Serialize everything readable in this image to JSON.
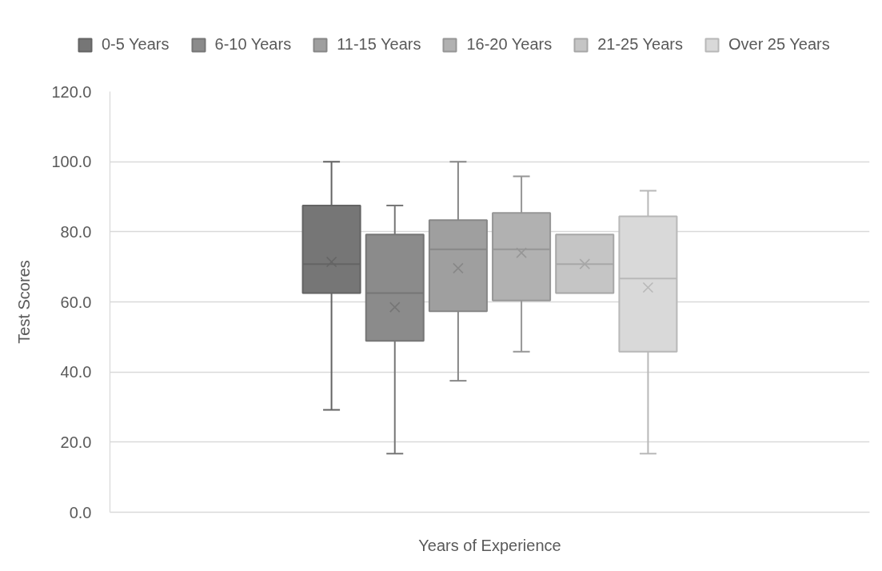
{
  "chart_data": {
    "type": "box",
    "xlabel": "Years of Experience",
    "ylabel": "Test Scores",
    "categories": [
      null
    ],
    "ylim": [
      0,
      120
    ],
    "yticks": [
      {
        "value": 0,
        "label": "0.0"
      },
      {
        "value": 20,
        "label": "20.0"
      },
      {
        "value": 40,
        "label": "40.0"
      },
      {
        "value": 60,
        "label": "60.0"
      },
      {
        "value": 80,
        "label": "80.0"
      },
      {
        "value": 100,
        "label": "100.0"
      },
      {
        "value": 120,
        "label": "120.0"
      }
    ],
    "grid": "y",
    "legend": "top",
    "tick_labels": "y",
    "series": [
      {
        "name": "0-5 Years",
        "color": "#767676",
        "boxes": [
          {
            "low": 29.2,
            "q1": 62.5,
            "median": 70.8,
            "q3": 87.5,
            "high": 100,
            "mean": 71.4
          }
        ]
      },
      {
        "name": "6-10 Years",
        "color": "#8b8b8b",
        "boxes": [
          {
            "low": 16.7,
            "q1": 48.9,
            "median": 62.5,
            "q3": 79.2,
            "high": 87.5,
            "mean": 58.5
          }
        ]
      },
      {
        "name": "11-15 Years",
        "color": "#9f9f9f",
        "boxes": [
          {
            "low": 37.5,
            "q1": 57.3,
            "median": 75.0,
            "q3": 83.3,
            "high": 100,
            "mean": 69.6
          }
        ]
      },
      {
        "name": "16-20 Years",
        "color": "#b1b1b1",
        "boxes": [
          {
            "low": 45.8,
            "q1": 60.4,
            "median": 75.0,
            "q3": 85.4,
            "high": 95.8,
            "mean": 74.0
          }
        ]
      },
      {
        "name": "21-25 Years",
        "color": "#c5c5c5",
        "boxes": [
          {
            "low": 62.5,
            "q1": 62.5,
            "median": 70.8,
            "q3": 79.2,
            "high": 79.2,
            "mean": 70.8
          }
        ]
      },
      {
        "name": "Over 25 Years",
        "color": "#d9d9d9",
        "boxes": [
          {
            "low": 16.7,
            "q1": 45.8,
            "median": 66.7,
            "q3": 84.4,
            "high": 91.7,
            "mean": 64.1
          }
        ]
      }
    ]
  }
}
